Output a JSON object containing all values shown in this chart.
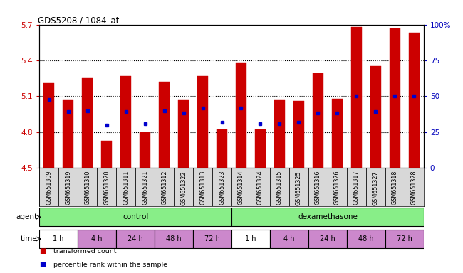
{
  "title": "GDS5208 / 1084_at",
  "samples": [
    "GSM651309",
    "GSM651319",
    "GSM651310",
    "GSM651320",
    "GSM651311",
    "GSM651321",
    "GSM651312",
    "GSM651322",
    "GSM651313",
    "GSM651323",
    "GSM651314",
    "GSM651324",
    "GSM651315",
    "GSM651325",
    "GSM651316",
    "GSM651326",
    "GSM651317",
    "GSM651327",
    "GSM651318",
    "GSM651328"
  ],
  "bar_values": [
    5.21,
    5.07,
    5.25,
    4.73,
    5.27,
    4.8,
    5.22,
    5.07,
    5.27,
    4.82,
    5.38,
    4.82,
    5.07,
    5.06,
    5.29,
    5.08,
    5.68,
    5.35,
    5.67,
    5.63
  ],
  "blue_values": [
    5.07,
    4.97,
    4.98,
    4.86,
    4.97,
    4.87,
    4.98,
    4.96,
    5.0,
    4.88,
    5.0,
    4.87,
    4.87,
    4.88,
    4.96,
    4.96,
    5.1,
    4.97,
    5.1,
    5.1
  ],
  "ymin": 4.5,
  "ymax": 5.7,
  "yticks": [
    4.5,
    4.8,
    5.1,
    5.4,
    5.7
  ],
  "right_yticks": [
    0,
    25,
    50,
    75,
    100
  ],
  "right_ytick_labels": [
    "0",
    "25",
    "50",
    "75",
    "100%"
  ],
  "bar_color": "#cc0000",
  "blue_color": "#0000cc",
  "bar_width": 0.55,
  "bg_color": "#ffffff",
  "plot_bg": "#ffffff",
  "tick_label_color_left": "#cc0000",
  "tick_label_color_right": "#0000bb",
  "agent_color": "#88ee88",
  "time_colors": [
    "#ffffff",
    "#cc88cc",
    "#cc88cc",
    "#cc88cc",
    "#cc88cc",
    "#ffffff",
    "#cc88cc",
    "#cc88cc",
    "#cc88cc",
    "#cc88cc"
  ],
  "time_labels": [
    "1 h",
    "4 h",
    "24 h",
    "48 h",
    "72 h",
    "1 h",
    "4 h",
    "24 h",
    "48 h",
    "72 h"
  ]
}
